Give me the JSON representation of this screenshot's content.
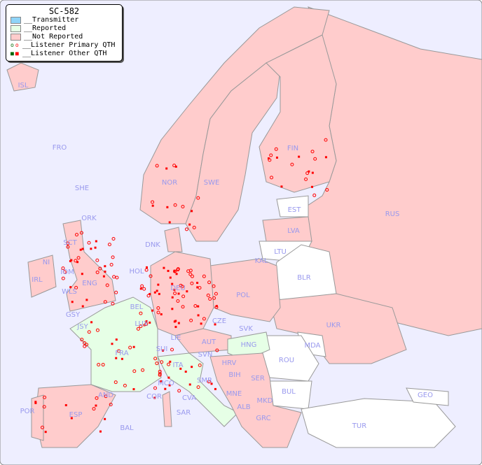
{
  "legend": {
    "title": "SC-582",
    "items": [
      {
        "label": "__Transmitter",
        "color": "#8fd4f8"
      },
      {
        "label": "__Reported",
        "color": "#e6ffe6"
      },
      {
        "label": "__Not Reported",
        "color": "#ffcccc"
      },
      {
        "label": "__Listener Primary QTH",
        "marker": "circle",
        "colors": [
          "#006600",
          "#ff0000"
        ]
      },
      {
        "label": "__Listener Other QTH",
        "marker": "square",
        "colors": [
          "#006600",
          "#ff0000"
        ]
      }
    ]
  },
  "colors": {
    "sea": "#eeeeff",
    "not_reported": "#ffcccc",
    "reported": "#e6ffe6",
    "no_data": "#ffffff",
    "marker": "#ff0000",
    "label": "#9999ee"
  },
  "countries": [
    "ISL",
    "FRO",
    "SHE",
    "ORK",
    "NOR",
    "SWE",
    "FIN",
    "EST",
    "LVA",
    "LTU",
    "RUS",
    "DNK",
    "KAL",
    "BLR",
    "IRL",
    "NI",
    "SCT",
    "IOM",
    "WLS",
    "ENG",
    "HOL",
    "BEL",
    "DEU",
    "POL",
    "GSY",
    "JSY",
    "LUX",
    "CZE",
    "SVK",
    "UKR",
    "FRA",
    "LIE",
    "AUT",
    "HNG",
    "MDA",
    "SUI",
    "SVN",
    "HRV",
    "ROU",
    "ITA",
    "BIH",
    "SER",
    "MCO",
    "COR",
    "SMR",
    "CVA",
    "MNE",
    "BUL",
    "GEO",
    "AND",
    "ALB",
    "MKD",
    "POR",
    "ESP",
    "SAR",
    "GRC",
    "TUR",
    "BAL"
  ]
}
